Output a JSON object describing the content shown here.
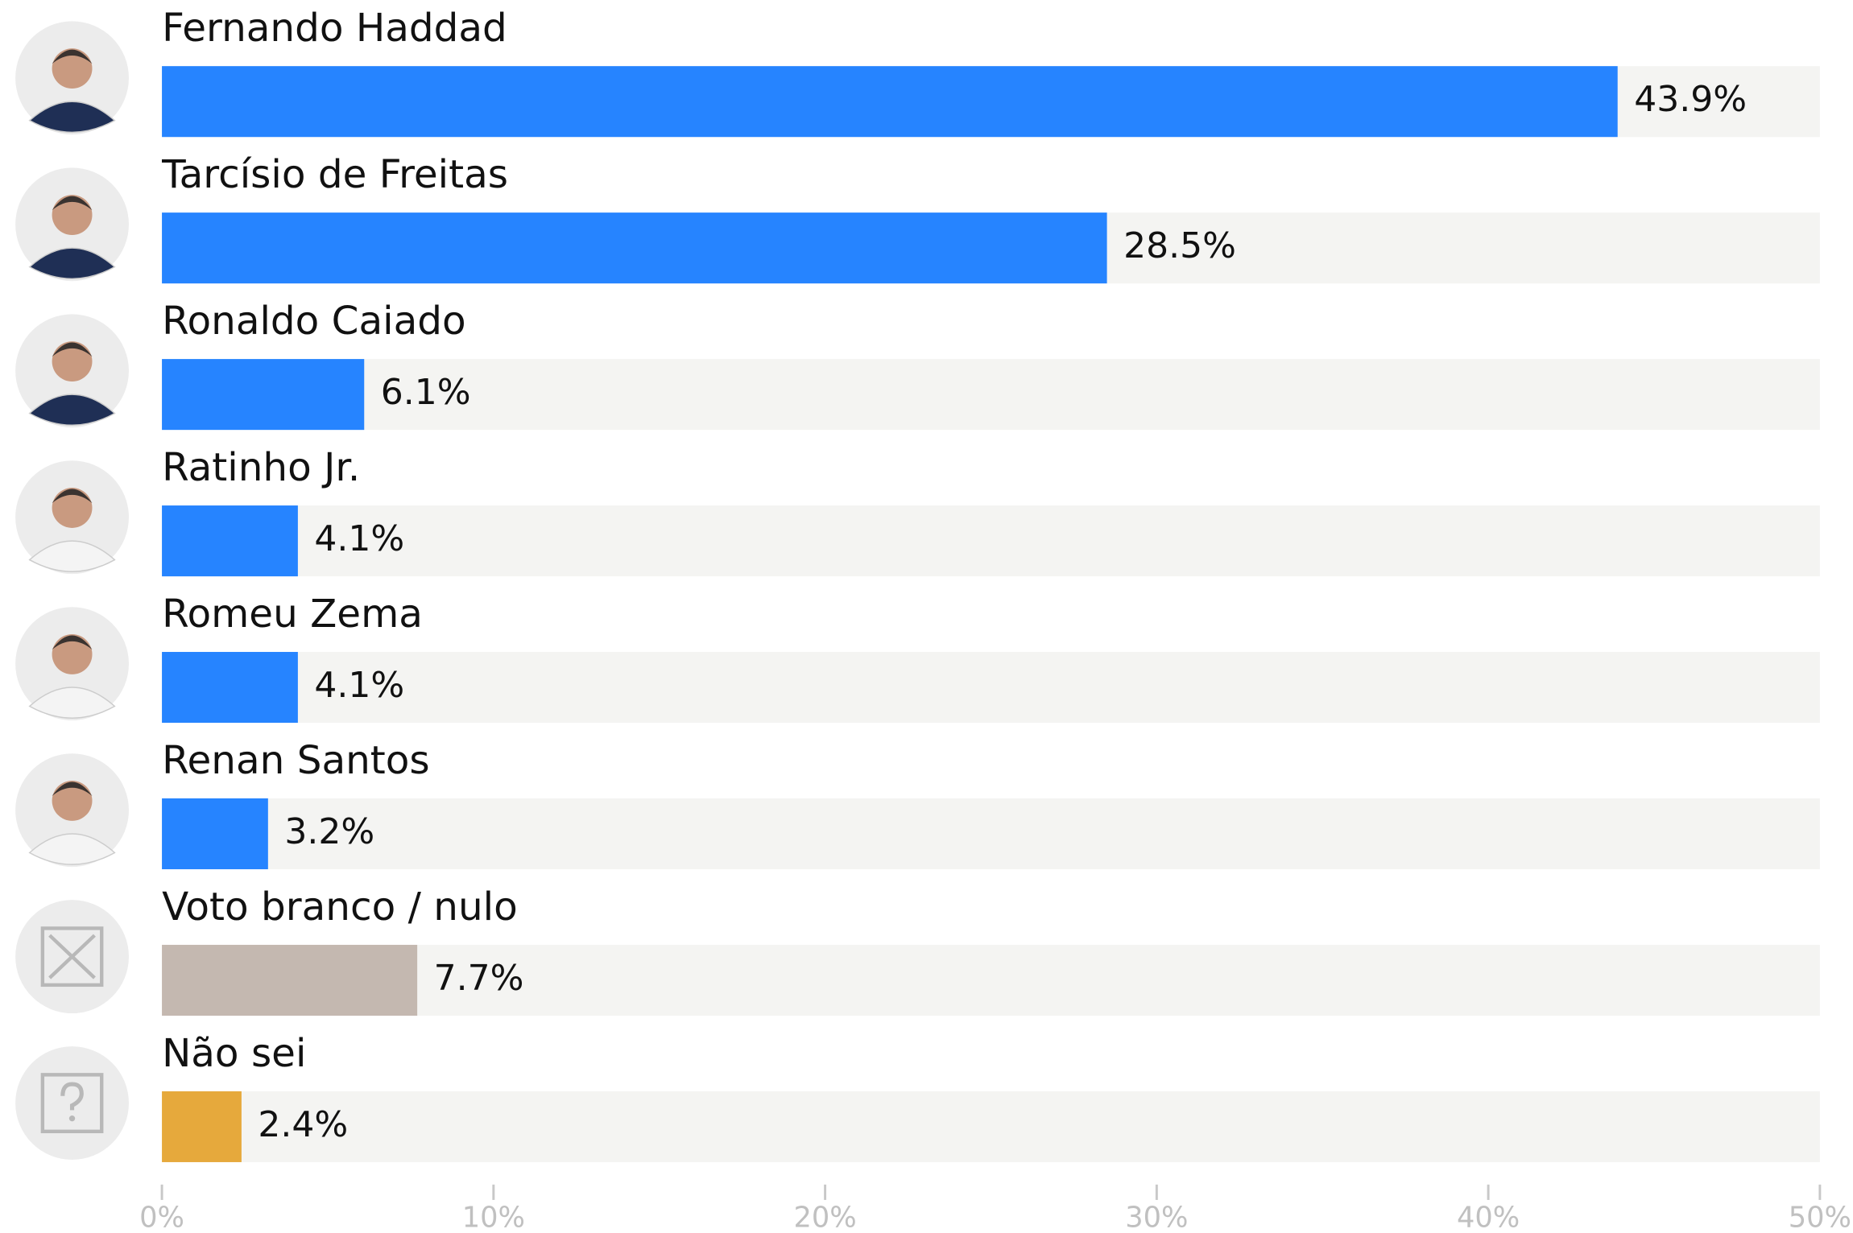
{
  "chart_data": {
    "type": "hbar",
    "categories": [
      "Fernando Haddad",
      "Tarcísio de Freitas",
      "Ronaldo Caiado",
      "Ratinho Jr.",
      "Romeu Zema",
      "Renan Santos",
      "Voto branco / nulo",
      "Não sei"
    ],
    "values": [
      43.9,
      28.5,
      6.1,
      4.1,
      4.1,
      3.2,
      7.7,
      2.4
    ],
    "value_labels": [
      "43.9%",
      "28.5%",
      "6.1%",
      "4.1%",
      "4.1%",
      "3.2%",
      "7.7%",
      "2.4%"
    ],
    "colors": [
      "#2684ff",
      "#2684ff",
      "#2684ff",
      "#2684ff",
      "#2684ff",
      "#2684ff",
      "#c4b8b0",
      "#e6a93c"
    ],
    "xlim": [
      0,
      50
    ],
    "xticks": [
      {
        "value": 0,
        "label": "0%"
      },
      {
        "value": 10,
        "label": "10%"
      },
      {
        "value": 20,
        "label": "20%"
      },
      {
        "value": 30,
        "label": "30%"
      },
      {
        "value": 40,
        "label": "40%"
      },
      {
        "value": 50,
        "label": "50%"
      }
    ]
  }
}
